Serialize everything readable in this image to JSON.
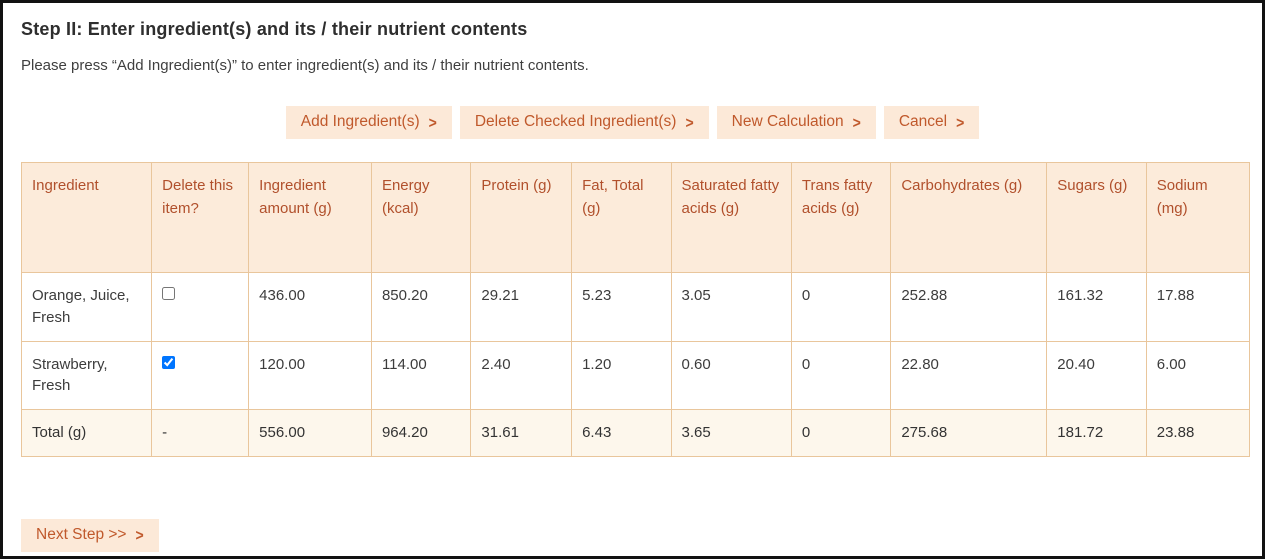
{
  "page": {
    "title": "Step II: Enter ingredient(s) and its / their nutrient contents",
    "instruction": "Please press  “Add Ingredient(s)”  to enter ingredient(s) and its / their nutrient contents."
  },
  "toolbar": {
    "arrow": ">",
    "buttons": [
      {
        "label": "Add Ingredient(s)"
      },
      {
        "label": "Delete Checked Ingredient(s)"
      },
      {
        "label": "New Calculation"
      },
      {
        "label": "Cancel"
      }
    ]
  },
  "table": {
    "columns": [
      "Ingredient",
      "Delete this item?",
      "Ingredient amount (g)",
      "Energy (kcal)",
      "Protein (g)",
      "Fat, Total (g)",
      "Saturated fatty acids (g)",
      "Trans fatty acids (g)",
      "Carbohydrates (g)",
      "Sugars (g)",
      "Sodium (mg)"
    ],
    "rows": [
      {
        "ingredient": "Orange, Juice, Fresh",
        "checked": false,
        "amount": "436.00",
        "energy": "850.20",
        "protein": "29.21",
        "fat": "5.23",
        "sat_fat": "3.05",
        "trans_fat": "0",
        "carbs": "252.88",
        "sugars": "161.32",
        "sodium": "17.88"
      },
      {
        "ingredient": "Strawberry, Fresh",
        "checked": true,
        "amount": "120.00",
        "energy": "114.00",
        "protein": "2.40",
        "fat": "1.20",
        "sat_fat": "0.60",
        "trans_fat": "0",
        "carbs": "22.80",
        "sugars": "20.40",
        "sodium": "6.00"
      }
    ],
    "total": {
      "label": "Total (g)",
      "delete_cell": "-",
      "amount": "556.00",
      "energy": "964.20",
      "protein": "31.61",
      "fat": "6.43",
      "sat_fat": "3.65",
      "trans_fat": "0",
      "carbs": "275.68",
      "sugars": "181.72",
      "sodium": "23.88"
    }
  },
  "footer": {
    "next_label": "Next Step >>",
    "arrow": ">"
  },
  "colors": {
    "accent_text": "#b1502c",
    "button_bg": "#fce9d8",
    "button_text": "#c0592c",
    "table_border": "#e9c69c",
    "header_bg": "#fcebda",
    "total_row_bg": "#fdf7ec",
    "frame_border": "#111111"
  }
}
